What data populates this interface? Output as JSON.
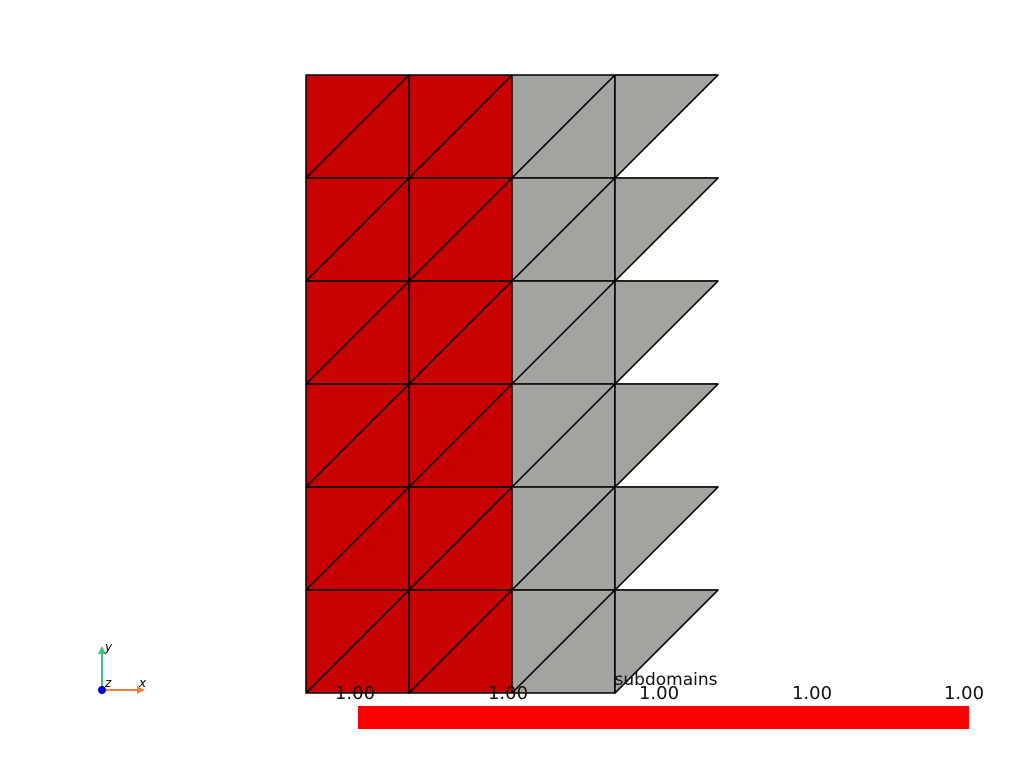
{
  "mesh": {
    "columns": 4,
    "rows": 6,
    "colors": {
      "region_a": "#c80000",
      "region_b": "#a3a3a0",
      "edge": "#000000"
    },
    "region_a_columns": 2
  },
  "scalar_bar": {
    "title": "subdomains",
    "color": "#ff0000",
    "tick_labels": [
      "1.00",
      "1.00",
      "1.00",
      "1.00",
      "1.00"
    ]
  },
  "axes_widget": {
    "x_label": "x",
    "y_label": "y",
    "z_label": "z",
    "x_color": "#f08040",
    "y_color": "#40c080",
    "z_color": "#0000cc"
  }
}
